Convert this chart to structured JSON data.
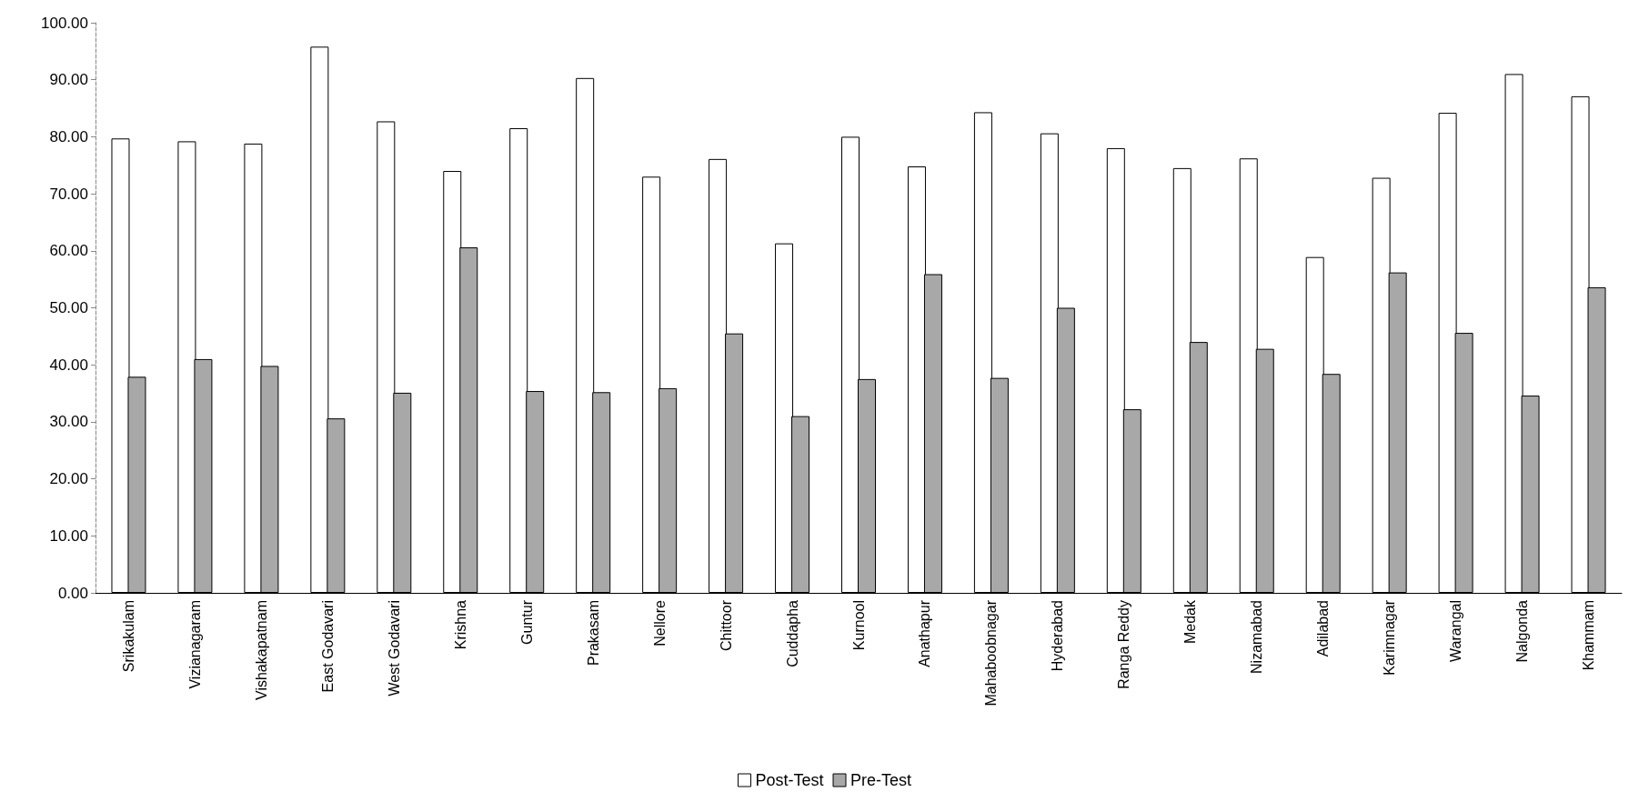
{
  "chart_data": {
    "type": "bar",
    "categories": [
      "Srikakulam",
      "Vizianagaram",
      "Vishakapatnam",
      "East Godavari",
      "West Godavari",
      "Krishna",
      "Guntur",
      "Prakasam",
      "Nellore",
      "Chittoor",
      "Cuddapha",
      "Kurnool",
      "Anathapur",
      "Mahaboobnagar",
      "Hyderabad",
      "Ranga Reddy",
      "Medak",
      "Nizamabad",
      "Adilabad",
      "Karimnagar",
      "Warangal",
      "Nalgonda",
      "Khammam"
    ],
    "series": [
      {
        "name": "Post-Test",
        "color": "#ffffff",
        "values": [
          79.7,
          79.2,
          78.8,
          95.8,
          82.7,
          74.0,
          81.5,
          90.3,
          73.0,
          76.1,
          61.3,
          80.0,
          74.8,
          84.3,
          80.6,
          78.0,
          74.5,
          76.2,
          58.9,
          72.8,
          84.2,
          91.0,
          87.1
        ]
      },
      {
        "name": "Pre-Test",
        "color": "#a8a8a8",
        "values": [
          37.9,
          41.0,
          39.8,
          30.6,
          35.1,
          60.6,
          35.4,
          35.2,
          35.9,
          45.5,
          31.0,
          37.5,
          55.9,
          37.7,
          50.0,
          32.2,
          44.0,
          42.8,
          38.4,
          56.2,
          45.6,
          34.6,
          53.6
        ]
      }
    ],
    "ylim": [
      0,
      100
    ],
    "yticks": [
      {
        "value": 0,
        "label": "0.00"
      },
      {
        "value": 10,
        "label": "10.00"
      },
      {
        "value": 20,
        "label": "20.00"
      },
      {
        "value": 30,
        "label": "30.00"
      },
      {
        "value": 40,
        "label": "40.00"
      },
      {
        "value": 50,
        "label": "50.00"
      },
      {
        "value": 60,
        "label": "60.00"
      },
      {
        "value": 70,
        "label": "70.00"
      },
      {
        "value": 80,
        "label": "80.00"
      },
      {
        "value": 90,
        "label": "90.00"
      },
      {
        "value": 100,
        "label": "100.00"
      }
    ],
    "grid": false,
    "legend": "bottom"
  }
}
